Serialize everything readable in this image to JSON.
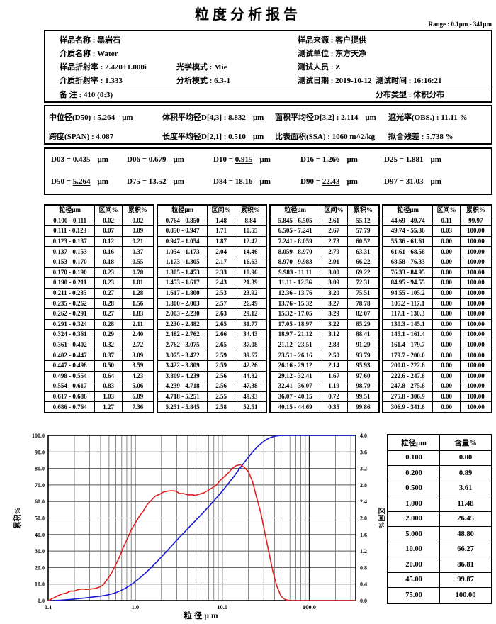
{
  "title": "粒度分析报告",
  "range_note": "Range : 0.1μm - 341μm",
  "info_rows": [
    {
      "rule": false,
      "items": [
        {
          "label": "样品名称",
          "value": "黑岩石",
          "left": 20
        },
        {
          "label": "样品来源",
          "value": "客户提供",
          "left": 356
        }
      ]
    },
    {
      "rule": false,
      "items": [
        {
          "label": "介质名称",
          "value": "Water",
          "left": 20
        },
        {
          "label": "测试单位",
          "value": "东方天净",
          "left": 356
        }
      ]
    },
    {
      "rule": false,
      "items": [
        {
          "label": "样品折射率",
          "value": "2.420+1.000i",
          "left": 20
        },
        {
          "label": "光学模式",
          "value": "Mie",
          "left": 185
        },
        {
          "label": "测试人员",
          "value": "Z",
          "left": 356
        }
      ]
    },
    {
      "rule": false,
      "items": [
        {
          "label": "介质折射率",
          "value": "1.333",
          "left": 20
        },
        {
          "label": "分析模式",
          "value": "6.3-1",
          "left": 185
        },
        {
          "label": "测试日期",
          "value": "2019-10-12",
          "left": 356
        },
        {
          "label": "测试时间",
          "value": "16:16:21",
          "left": 466
        }
      ]
    },
    {
      "rule": true,
      "items": [
        {
          "label": "备 注",
          "value": "410  (0:3)",
          "left": 20
        },
        {
          "label": "分布类型",
          "value": "体积分布",
          "left": 466
        }
      ]
    }
  ],
  "stats_rows": [
    [
      {
        "label": "中位径(D50)",
        "value": "5.264",
        "unit": "μm",
        "left": 5
      },
      {
        "label": "体积平均径D[4,3]",
        "value": "8.832",
        "unit": "μm",
        "left": 165
      },
      {
        "label": "面积平均径D[3,2]",
        "value": "2.114",
        "unit": "μm",
        "left": 324
      },
      {
        "label": "遮光率(OBS.)",
        "value": "11.11 %",
        "unit": "",
        "left": 484
      }
    ],
    [
      {
        "label": "跨度(SPAN)",
        "value": "4.087",
        "unit": "",
        "left": 5
      },
      {
        "label": "长度平均径D[2,1]",
        "value": "0.510",
        "unit": "μm",
        "left": 165
      },
      {
        "label": "比表面积(SSA)",
        "value": "1060 m^2/kg",
        "unit": "",
        "left": 324
      },
      {
        "label": "拟合残差",
        "value": "5.738 %",
        "unit": "",
        "left": 484
      }
    ]
  ],
  "percentile_rows": [
    [
      {
        "name": "D03",
        "value": "0.435",
        "unit": "μm",
        "underline": false,
        "left": 8
      },
      {
        "name": "D06",
        "value": "0.679",
        "unit": "μm",
        "underline": false,
        "left": 115
      },
      {
        "name": "D10",
        "value": "0.915",
        "unit": "μm",
        "underline": true,
        "left": 237
      },
      {
        "name": "D16",
        "value": "1.266",
        "unit": "μm",
        "underline": false,
        "left": 360
      },
      {
        "name": "D25",
        "value": "1.881",
        "unit": "μm",
        "underline": false,
        "left": 478
      }
    ],
    [
      {
        "name": "D50",
        "value": "5.264",
        "unit": "μm",
        "underline": true,
        "left": 8
      },
      {
        "name": "D75",
        "value": "13.52",
        "unit": "μm",
        "underline": false,
        "left": 115
      },
      {
        "name": "D84",
        "value": "18.16",
        "unit": "μm",
        "underline": false,
        "left": 237
      },
      {
        "name": "D90",
        "value": "22.43",
        "unit": "μm",
        "underline": true,
        "left": 360
      },
      {
        "name": "D97",
        "value": "31.03",
        "unit": "μm",
        "underline": false,
        "left": 478
      }
    ]
  ],
  "main_table": {
    "headers": [
      "粒径μm",
      "区间%",
      "累积%"
    ],
    "rows_per_group": 19
  },
  "side_table": {
    "headers": [
      "粒径μm",
      "含量%"
    ],
    "rows": [
      [
        "0.100",
        "0.00"
      ],
      [
        "0.200",
        "0.89"
      ],
      [
        "0.500",
        "3.61"
      ],
      [
        "1.000",
        "11.48"
      ],
      [
        "2.000",
        "26.45"
      ],
      [
        "5.000",
        "48.80"
      ],
      [
        "10.00",
        "66.27"
      ],
      [
        "20.00",
        "86.81"
      ],
      [
        "45.00",
        "99.87"
      ],
      [
        "75.00",
        "100.00"
      ]
    ]
  },
  "chart_data": {
    "type": "line",
    "x_scale": "log",
    "xlim": [
      0.1,
      341.6
    ],
    "xlabel": "粒径μm",
    "x_ticks": [
      0.1,
      1,
      10,
      100
    ],
    "x_tick_labels": [
      "0.1",
      "1.0",
      "10.0",
      "100.0"
    ],
    "left_axis": {
      "label": "累积%",
      "min": 0,
      "max": 100,
      "step": 10
    },
    "right_axis": {
      "label": "区间%",
      "min": 0,
      "max": 4,
      "step": 0.4
    },
    "grid": true,
    "bin_edges": [
      0.1,
      0.111,
      0.123,
      0.137,
      0.153,
      0.17,
      0.19,
      0.211,
      0.235,
      0.262,
      0.291,
      0.324,
      0.361,
      0.402,
      0.447,
      0.498,
      0.554,
      0.617,
      0.686,
      0.764,
      0.85,
      0.947,
      1.054,
      1.173,
      1.305,
      1.453,
      1.617,
      1.8,
      2.003,
      2.23,
      2.482,
      2.762,
      3.075,
      3.422,
      3.809,
      4.239,
      4.718,
      5.251,
      5.845,
      6.505,
      7.241,
      8.059,
      8.97,
      9.983,
      11.11,
      12.36,
      13.76,
      15.32,
      17.05,
      18.97,
      21.12,
      23.51,
      26.16,
      29.12,
      32.41,
      36.07,
      40.15,
      44.69,
      49.74,
      55.36,
      61.61,
      68.58,
      76.33,
      84.95,
      94.55,
      105.2,
      117.1,
      130.3,
      145.1,
      161.4,
      179.7,
      200.0,
      222.6,
      247.8,
      275.8,
      306.9,
      341.6
    ],
    "series": [
      {
        "name": "累积%",
        "axis": "left",
        "color": "#1a1ad2",
        "values": [
          0.02,
          0.09,
          0.21,
          0.37,
          0.55,
          0.78,
          1.01,
          1.28,
          1.56,
          1.83,
          2.11,
          2.4,
          2.72,
          3.09,
          3.59,
          4.23,
          5.06,
          6.09,
          7.36,
          8.84,
          10.55,
          12.42,
          14.46,
          16.63,
          18.96,
          21.39,
          23.92,
          26.49,
          29.12,
          31.77,
          34.43,
          37.08,
          39.67,
          42.26,
          44.82,
          47.38,
          49.93,
          52.51,
          55.12,
          57.79,
          60.52,
          63.31,
          66.22,
          69.22,
          72.31,
          75.51,
          78.78,
          82.07,
          85.29,
          88.41,
          91.29,
          93.79,
          95.93,
          97.6,
          98.79,
          99.51,
          99.86,
          99.97,
          100.0,
          100.0,
          100.0,
          100.0,
          100.0,
          100.0,
          100.0,
          100.0,
          100.0,
          100.0,
          100.0,
          100.0,
          100.0,
          100.0,
          100.0,
          100.0,
          100.0,
          100.0
        ]
      },
      {
        "name": "区间%",
        "axis": "right",
        "color": "#e02020",
        "values": [
          0.02,
          0.07,
          0.12,
          0.16,
          0.18,
          0.23,
          0.23,
          0.27,
          0.28,
          0.27,
          0.28,
          0.29,
          0.32,
          0.37,
          0.5,
          0.64,
          0.83,
          1.03,
          1.27,
          1.48,
          1.71,
          1.87,
          2.04,
          2.17,
          2.33,
          2.43,
          2.53,
          2.57,
          2.63,
          2.65,
          2.66,
          2.65,
          2.59,
          2.59,
          2.56,
          2.56,
          2.55,
          2.58,
          2.61,
          2.67,
          2.73,
          2.79,
          2.91,
          3.0,
          3.09,
          3.2,
          3.27,
          3.29,
          3.22,
          3.12,
          2.88,
          2.5,
          2.14,
          1.67,
          1.19,
          0.72,
          0.35,
          0.11,
          0.03,
          0.0,
          0.0,
          0.0,
          0.0,
          0.0,
          0.0,
          0.0,
          0.0,
          0.0,
          0.0,
          0.0,
          0.0,
          0.0,
          0.0,
          0.0,
          0.0,
          0.0
        ]
      }
    ]
  }
}
